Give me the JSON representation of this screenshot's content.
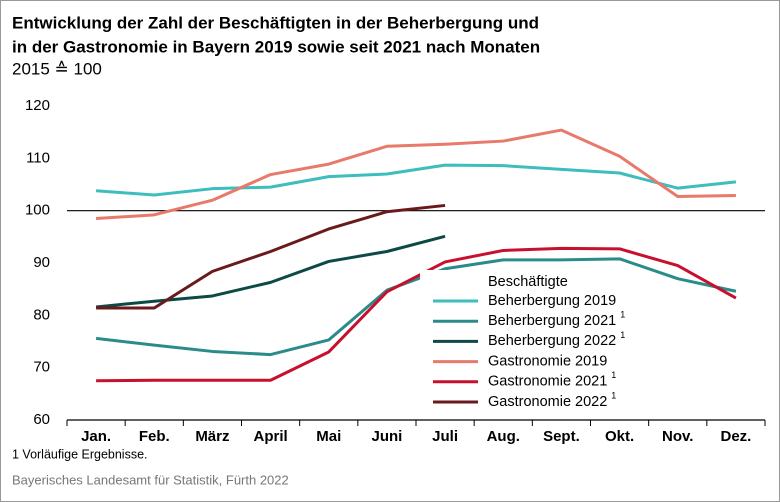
{
  "chart_data": {
    "type": "line",
    "title": [
      "Entwicklung der Zahl der Beschäftigten in der Beherbergung und",
      "in der Gastronomie in Bayern 2019 sowie seit 2021 nach Monaten"
    ],
    "subtitle": "2015 ≙ 100",
    "categories": [
      "Jan.",
      "Feb.",
      "März",
      "April",
      "Mai",
      "Juni",
      "Juli",
      "Aug.",
      "Sept.",
      "Okt.",
      "Nov.",
      "Dez."
    ],
    "ylim": [
      60,
      120
    ],
    "yticks": [
      60,
      70,
      80,
      90,
      100,
      110,
      120
    ],
    "reference_line": 100,
    "legend_title": "Beschäftigte",
    "series": [
      {
        "name": "Beherbergung 2019",
        "color": "#3dbdbd",
        "values": [
          103.8,
          103.0,
          104.2,
          104.5,
          106.5,
          107.0,
          108.7,
          108.6,
          107.9,
          107.2,
          104.3,
          105.5
        ]
      },
      {
        "name": "Beherbergung 2021",
        "footnote_ref": "1",
        "color": "#2a8c8a",
        "values": [
          75.6,
          74.3,
          73.1,
          72.5,
          75.3,
          84.8,
          88.9,
          90.6,
          90.6,
          90.8,
          87.0,
          84.6
        ]
      },
      {
        "name": "Beherbergung 2022",
        "footnote_ref": "1",
        "color": "#0e4a45",
        "values": [
          81.6,
          82.7,
          83.7,
          86.3,
          90.3,
          92.2,
          95.1,
          null,
          null,
          null,
          null,
          null
        ]
      },
      {
        "name": "Gastronomie 2019",
        "color": "#e87a6b",
        "values": [
          98.5,
          99.2,
          102.0,
          106.9,
          108.9,
          112.3,
          112.7,
          113.3,
          115.4,
          110.4,
          102.7,
          102.9
        ]
      },
      {
        "name": "Gastronomie 2021",
        "footnote_ref": "1",
        "color": "#c8102e",
        "values": [
          67.5,
          67.6,
          67.6,
          67.6,
          73.0,
          84.5,
          90.2,
          92.4,
          92.8,
          92.7,
          89.5,
          83.3
        ]
      },
      {
        "name": "Gastronomie 2022",
        "footnote_ref": "1",
        "color": "#6b1a1c",
        "values": [
          81.4,
          81.4,
          88.4,
          92.2,
          96.5,
          99.8,
          101.0,
          null,
          null,
          null,
          null,
          null
        ]
      }
    ],
    "footnote": "1  Vorläufige Ergebnisse.",
    "source": "Bayerisches Landesamt für Statistik, Fürth 2022"
  }
}
